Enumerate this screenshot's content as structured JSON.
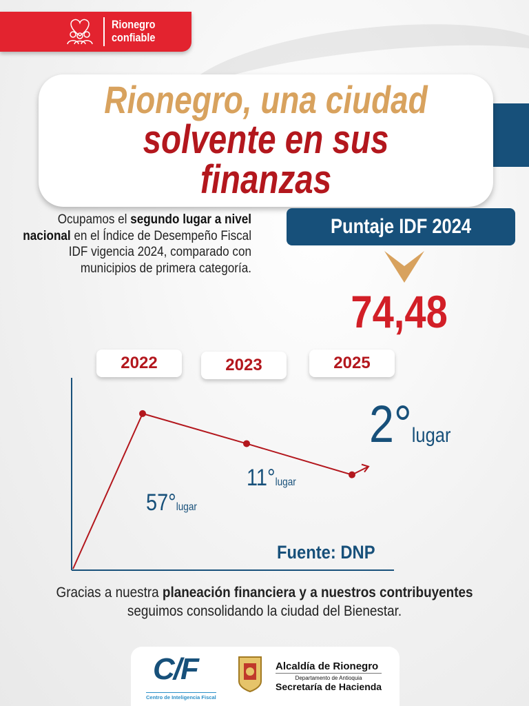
{
  "brand": {
    "tag_line1": "Rionegro",
    "tag_line2": "confiable",
    "icon": "family-heart-icon",
    "red": "#e3232f",
    "blue": "#17507a",
    "gold": "#d8a25e",
    "dark_red": "#b3171d"
  },
  "title": {
    "line1": "Rionegro, una ciudad",
    "line2": "solvente en sus finanzas"
  },
  "intro": {
    "p1": "Ocupamos el ",
    "b1": "segundo lugar a nivel nacional",
    "p2": " en el Índice de Desempeño Fiscal IDF vigencia 2024, comparado con municipios de primera categoría."
  },
  "score": {
    "label": "Puntaje IDF 2024",
    "value": "74,48",
    "icon": "chevron-down-icon"
  },
  "chart_data": {
    "type": "line",
    "categories": [
      "2022",
      "2023",
      "2025"
    ],
    "values": [
      57,
      11,
      2
    ],
    "unit": "lugar",
    "labels": [
      {
        "num": "57°",
        "unit": "lugar"
      },
      {
        "num": "11°",
        "unit": "lugar"
      },
      {
        "num": "2°",
        "unit": "lugar"
      }
    ],
    "source": "Fuente: DNP",
    "color": "#b3171d"
  },
  "closing": {
    "p1": "Gracias a nuestra ",
    "b1": "planeación financiera y a nuestros contribuyentes",
    "p2": " seguimos consolidando la ciudad del Bienestar."
  },
  "footer": {
    "cif_logo": "C/F",
    "cif_name": "Centro de Inteligencia Fiscal",
    "alcaldia": "Alcaldía de Rionegro",
    "departamento": "Departamento de Antioquia",
    "secretaria": "Secretaría de Hacienda",
    "shield": "rionegro-coat-of-arms"
  }
}
